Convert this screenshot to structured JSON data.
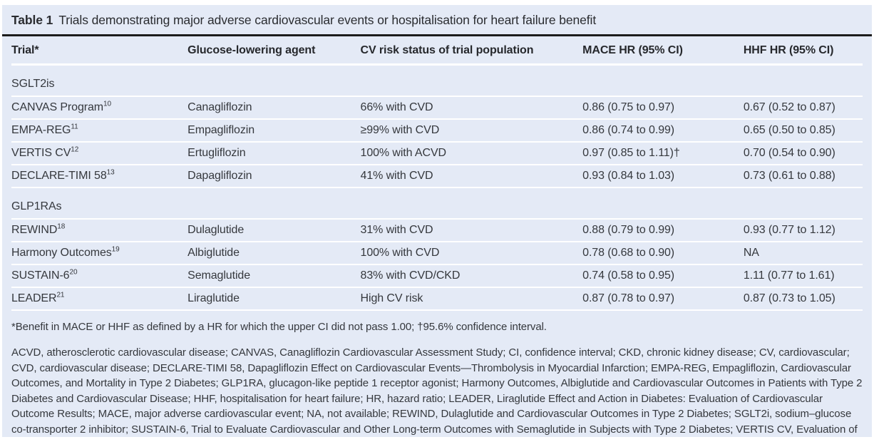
{
  "title": {
    "label": "Table 1",
    "text": "Trials demonstrating major adverse cardiovascular events or hospitalisation for heart failure benefit"
  },
  "colors": {
    "card_background": "#e4eaf6",
    "title_rule": "#1c1c1c",
    "row_separator": "#ffffff",
    "body_text": "#35383d"
  },
  "table": {
    "columns": [
      "Trial*",
      "Glucose-lowering agent",
      "CV risk status of trial population",
      "MACE HR (95% CI)",
      "HHF HR (95% CI)"
    ],
    "sections": [
      {
        "label": "SGLT2is",
        "rows": [
          {
            "trial": "CANVAS Program",
            "ref": "10",
            "agent": "Canagliflozin",
            "cv_risk": "66% with CVD",
            "mace": "0.86 (0.75 to 0.97)",
            "hhf": "0.67 (0.52 to 0.87)"
          },
          {
            "trial": "EMPA-REG",
            "ref": "11",
            "agent": "Empagliflozin",
            "cv_risk": "≥99% with CVD",
            "mace": "0.86 (0.74 to 0.99)",
            "hhf": "0.65 (0.50 to 0.85)"
          },
          {
            "trial": "VERTIS CV",
            "ref": "12",
            "agent": "Ertugliflozin",
            "cv_risk": "100% with ACVD",
            "mace": "0.97 (0.85 to 1.11)†",
            "hhf": "0.70 (0.54 to 0.90)"
          },
          {
            "trial": "DECLARE-TIMI 58",
            "ref": "13",
            "agent": "Dapagliflozin",
            "cv_risk": "41% with CVD",
            "mace": "0.93 (0.84 to 1.03)",
            "hhf": "0.73 (0.61 to 0.88)"
          }
        ]
      },
      {
        "label": "GLP1RAs",
        "rows": [
          {
            "trial": "REWIND",
            "ref": "18",
            "agent": "Dulaglutide",
            "cv_risk": "31% with CVD",
            "mace": "0.88 (0.79 to 0.99)",
            "hhf": "0.93 (0.77 to 1.12)"
          },
          {
            "trial": "Harmony Outcomes",
            "ref": "19",
            "agent": "Albiglutide",
            "cv_risk": "100% with CVD",
            "mace": "0.78 (0.68 to 0.90)",
            "hhf": "NA"
          },
          {
            "trial": "SUSTAIN-6",
            "ref": "20",
            "agent": "Semaglutide",
            "cv_risk": "83% with CVD/CKD",
            "mace": "0.74 (0.58 to 0.95)",
            "hhf": "1.11 (0.77 to 1.61)"
          },
          {
            "trial": "LEADER",
            "ref": "21",
            "agent": "Liraglutide",
            "cv_risk": "High CV risk",
            "mace": "0.87 (0.78 to 0.97)",
            "hhf": "0.87 (0.73 to 1.05)"
          }
        ]
      }
    ]
  },
  "footnotes": {
    "symbols": "*Benefit in MACE or HHF as defined by a HR for which the upper CI did not pass 1.00; †95.6% confidence interval.",
    "abbreviations": "ACVD, atherosclerotic cardiovascular disease; CANVAS, Canagliflozin Cardiovascular Assessment Study; CI, confidence interval; CKD, chronic kidney disease; CV, cardiovascular; CVD, cardiovascular disease; DECLARE-TIMI 58, Dapagliflozin Effect on Cardiovascular Events—Thrombolysis in Myocardial Infarction; EMPA-REG, Empagliflozin, Cardiovascular Outcomes, and Mortality in Type 2 Diabetes; GLP1RA, glucagon-like peptide 1 receptor agonist; Harmony Outcomes, Albiglutide and Cardiovascular Outcomes in Patients with Type 2 Diabetes and Cardiovascular Disease; HHF, hospitalisation for heart failure; HR, hazard ratio; LEADER, Liraglutide Effect and Action in Diabetes: Evaluation of Cardiovascular Outcome Results; MACE, major adverse cardiovascular event; NA, not available; REWIND, Dulaglutide and Cardiovascular Outcomes in Type 2 Diabetes; SGLT2i, sodium–glucose co-transporter 2 inhibitor; SUSTAIN-6, Trial to Evaluate Cardiovascular and Other Long-term Outcomes with Semaglutide in Subjects with Type 2 Diabetes; VERTIS CV, Evaluation of Ertugliflozin Efficacy and Safety Cardiovascular."
  }
}
